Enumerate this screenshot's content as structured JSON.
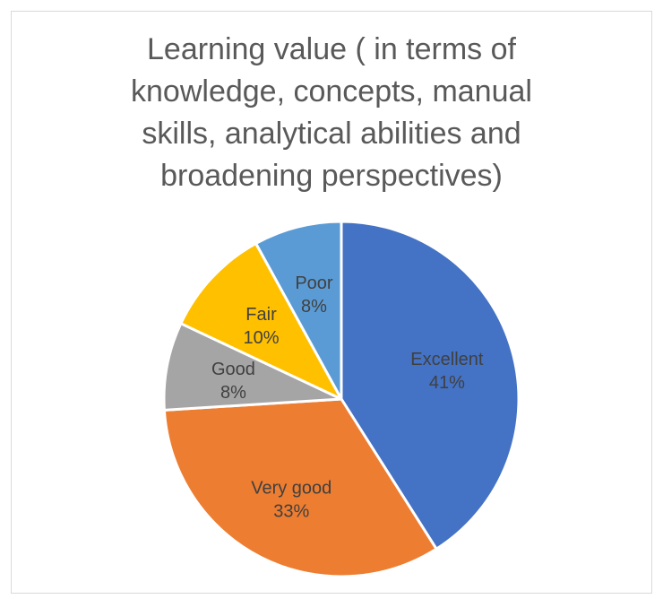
{
  "chart_data": {
    "type": "pie",
    "title_lines": [
      "Learning value ( in terms of",
      "knowledge, concepts, manual",
      "skills, analytical abilities and",
      "broadening perspectives)"
    ],
    "slices": [
      {
        "label": "Excellent",
        "value": 41,
        "display": "41%",
        "color": "#4472C4"
      },
      {
        "label": "Very good",
        "value": 33,
        "display": "33%",
        "color": "#ED7D31"
      },
      {
        "label": "Good",
        "value": 8,
        "display": "8%",
        "color": "#A5A5A5"
      },
      {
        "label": "Fair",
        "value": 10,
        "display": "10%",
        "color": "#FFC000"
      },
      {
        "label": "Poor",
        "value": 8,
        "display": "8%",
        "color": "#5B9BD5"
      }
    ],
    "legend": "none"
  }
}
